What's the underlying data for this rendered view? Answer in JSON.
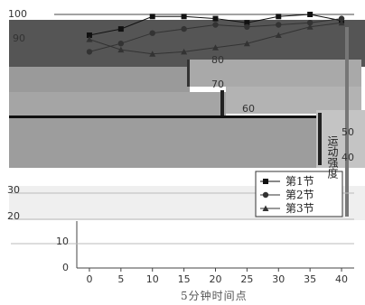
{
  "chart_data": {
    "type": "line",
    "xlabel": "5分钟时间点",
    "ylabel": "运动强度",
    "x": [
      0,
      5,
      10,
      15,
      20,
      25,
      30,
      35,
      40
    ],
    "xlim": [
      -2,
      42
    ],
    "ylim": [
      0,
      100
    ],
    "xticks": [
      "0",
      "5",
      "10",
      "15",
      "20",
      "25",
      "30",
      "35",
      "40"
    ],
    "yticks": [
      "0",
      "10",
      "20",
      "30",
      "40",
      "50",
      "60",
      "70",
      "80",
      "90",
      "100"
    ],
    "grid": true,
    "legend_position": "bottom-right",
    "series": [
      {
        "name": "第1节",
        "marker": "square",
        "color": "#111111",
        "values": [
          90,
          93,
          99,
          99,
          98,
          96,
          99,
          100,
          97
        ]
      },
      {
        "name": "第2节",
        "marker": "circle",
        "color": "#333333",
        "values": [
          82,
          86,
          91,
          93,
          95,
          94,
          95,
          96,
          98
        ]
      },
      {
        "name": "第3节",
        "marker": "triangle",
        "color": "#333333",
        "values": [
          88,
          83,
          81,
          82,
          84,
          86,
          90,
          94,
          96
        ]
      }
    ]
  }
}
